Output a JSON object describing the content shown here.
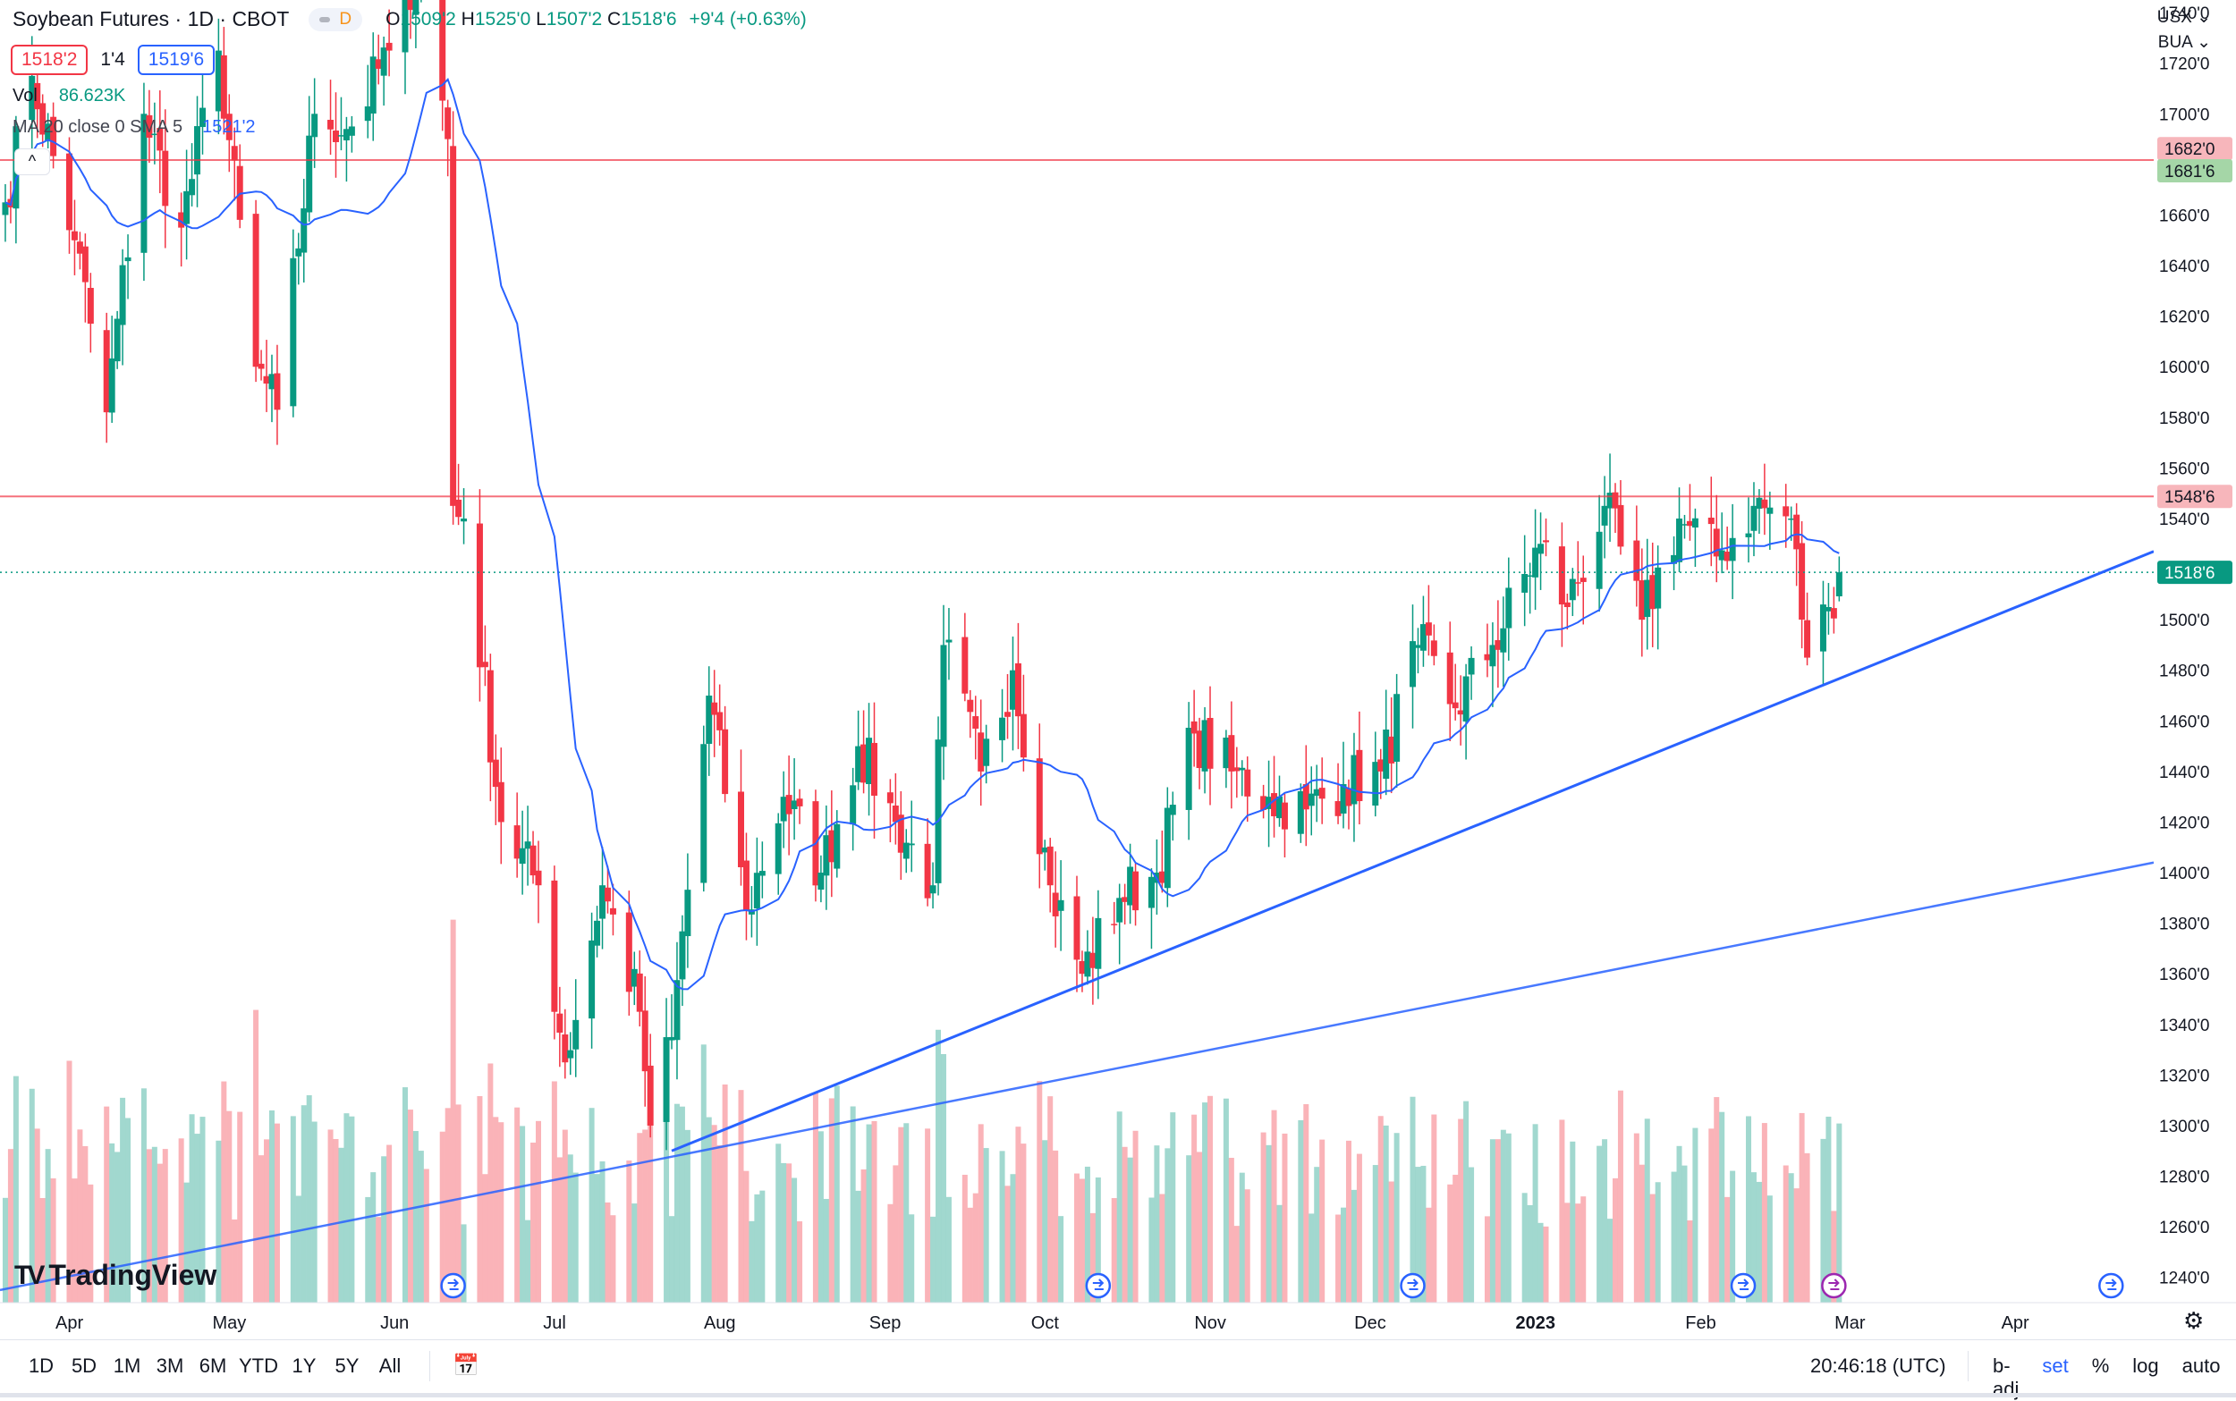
{
  "header": {
    "title": "Soybean Futures · 1D · CBOT",
    "interval_badge": "D",
    "open_label": "O",
    "open": "1509'2",
    "high_label": "H",
    "high": "1525'0",
    "low_label": "L",
    "low": "1507'2",
    "close_label": "C",
    "close": "1518'6",
    "change": "+9'4 (+0.63%)"
  },
  "quote": {
    "sell": "1518'2",
    "spread": "1'4",
    "buy": "1519'6"
  },
  "indicators": {
    "vol_label": "Vol",
    "vol_value": "86.623K",
    "ma_label": "MA 20 close 0 SMA 5",
    "ma_value": "1521'2",
    "collapse_icon": "^"
  },
  "scale_controls": {
    "currency": "USX",
    "unit": "BUA"
  },
  "price_axis": {
    "ticks": [
      "1240'0",
      "1260'0",
      "1280'0",
      "1300'0",
      "1320'0",
      "1340'0",
      "1360'0",
      "1380'0",
      "1400'0",
      "1420'0",
      "1440'0",
      "1460'0",
      "1480'0",
      "1500'0",
      "1520'0",
      "1540'0",
      "1560'0",
      "1580'0",
      "1600'0",
      "1620'0",
      "1640'0",
      "1660'0",
      "1680'0",
      "1700'0",
      "1720'0",
      "1740'0"
    ],
    "line_labels": [
      {
        "text": "1682'0",
        "bg": "#f7b6bb",
        "color": "#131722"
      },
      {
        "text": "1681'6",
        "bg": "#a5d6a7",
        "color": "#131722"
      },
      {
        "text": "1548'6",
        "bg": "#f7b6bb",
        "color": "#131722"
      },
      {
        "text": "1518'6",
        "bg": "#089981",
        "color": "#ffffff"
      }
    ]
  },
  "time_axis": [
    "Apr",
    "May",
    "Jun",
    "Jul",
    "Aug",
    "Sep",
    "Oct",
    "Nov",
    "Dec",
    "2023",
    "Feb",
    "Mar",
    "Apr"
  ],
  "bottom_bar": {
    "ranges": [
      "1D",
      "5D",
      "1M",
      "3M",
      "6M",
      "YTD",
      "1Y",
      "5Y",
      "All"
    ],
    "time": "20:46:18 (UTC)",
    "options": [
      "b-adj",
      "set",
      "%",
      "log",
      "auto"
    ]
  },
  "branding": {
    "name": "TradingView"
  },
  "colors": {
    "up": "#089981",
    "down": "#f23645",
    "ma": "#2962ff",
    "level": "#f23645",
    "trend": "#2962ff"
  },
  "chart_data": {
    "type": "candlestick",
    "title": "Soybean Futures · 1D · CBOT",
    "x_range": [
      "2022-03-22",
      "2023-04-30"
    ],
    "y_range": [
      1230,
      1745
    ],
    "grid": false,
    "anchors": [
      {
        "x": "2022-03-23",
        "close": 1665
      },
      {
        "x": "2022-03-28",
        "close": 1715
      },
      {
        "x": "2022-04-05",
        "close": 1650
      },
      {
        "x": "2022-04-11",
        "close": 1582
      },
      {
        "x": "2022-04-18",
        "close": 1700
      },
      {
        "x": "2022-04-25",
        "close": 1655
      },
      {
        "x": "2022-05-02",
        "close": 1725
      },
      {
        "x": "2022-05-09",
        "close": 1600
      },
      {
        "x": "2022-05-13",
        "close": 1583
      },
      {
        "x": "2022-05-20",
        "close": 1700
      },
      {
        "x": "2022-05-27",
        "close": 1695
      },
      {
        "x": "2022-06-03",
        "close": 1725
      },
      {
        "x": "2022-06-09",
        "close": 1765
      },
      {
        "x": "2022-06-14",
        "close": 1690
      },
      {
        "x": "2022-06-15",
        "close": 1545
      },
      {
        "x": "2022-06-17",
        "close": 1540
      },
      {
        "x": "2022-06-24",
        "close": 1420
      },
      {
        "x": "2022-07-01",
        "close": 1395
      },
      {
        "x": "2022-07-06",
        "close": 1325
      },
      {
        "x": "2022-07-13",
        "close": 1395
      },
      {
        "x": "2022-07-20",
        "close": 1345
      },
      {
        "x": "2022-07-22",
        "close": 1300
      },
      {
        "x": "2022-07-26",
        "close": 1335
      },
      {
        "x": "2022-08-02",
        "close": 1470
      },
      {
        "x": "2022-08-09",
        "close": 1385
      },
      {
        "x": "2022-08-16",
        "close": 1430
      },
      {
        "x": "2022-08-23",
        "close": 1400
      },
      {
        "x": "2022-08-30",
        "close": 1450
      },
      {
        "x": "2022-09-06",
        "close": 1420
      },
      {
        "x": "2022-09-13",
        "close": 1395
      },
      {
        "x": "2022-09-15",
        "close": 1490
      },
      {
        "x": "2022-09-22",
        "close": 1440
      },
      {
        "x": "2022-09-28",
        "close": 1480
      },
      {
        "x": "2022-10-05",
        "close": 1395
      },
      {
        "x": "2022-10-11",
        "close": 1360
      },
      {
        "x": "2022-10-18",
        "close": 1390
      },
      {
        "x": "2022-10-25",
        "close": 1400
      },
      {
        "x": "2022-11-01",
        "close": 1455
      },
      {
        "x": "2022-11-08",
        "close": 1440
      },
      {
        "x": "2022-11-15",
        "close": 1430
      },
      {
        "x": "2022-11-22",
        "close": 1425
      },
      {
        "x": "2022-11-29",
        "close": 1435
      },
      {
        "x": "2022-12-06",
        "close": 1440
      },
      {
        "x": "2022-12-13",
        "close": 1490
      },
      {
        "x": "2022-12-20",
        "close": 1465
      },
      {
        "x": "2022-12-27",
        "close": 1490
      },
      {
        "x": "2023-01-05",
        "close": 1530
      },
      {
        "x": "2023-01-10",
        "close": 1505
      },
      {
        "x": "2023-01-17",
        "close": 1545
      },
      {
        "x": "2023-01-24",
        "close": 1500
      },
      {
        "x": "2023-01-31",
        "close": 1540
      },
      {
        "x": "2023-02-07",
        "close": 1525
      },
      {
        "x": "2023-02-14",
        "close": 1545
      },
      {
        "x": "2023-02-21",
        "close": 1540
      },
      {
        "x": "2023-02-24",
        "close": 1485
      },
      {
        "x": "2023-02-28",
        "close": 1505
      },
      {
        "x": "2023-03-02",
        "close": 1518.75
      }
    ],
    "volume_range": [
      0,
      150000
    ],
    "price_levels": [
      1681.75,
      1548.75
    ],
    "last_price": 1518.75,
    "trendlines": [
      {
        "from": {
          "x": "2022-07-26",
          "y": 1290
        },
        "to": {
          "x": "2023-04-30",
          "y": 1527
        }
      },
      {
        "from": {
          "x": "2022-03-22",
          "y": 1235
        },
        "to": {
          "x": "2023-04-30",
          "y": 1404
        }
      }
    ],
    "series": [
      {
        "name": "MA 20 close 0 SMA 5",
        "type": "line",
        "color": "#2962ff"
      },
      {
        "name": "Vol",
        "type": "volume"
      }
    ]
  }
}
